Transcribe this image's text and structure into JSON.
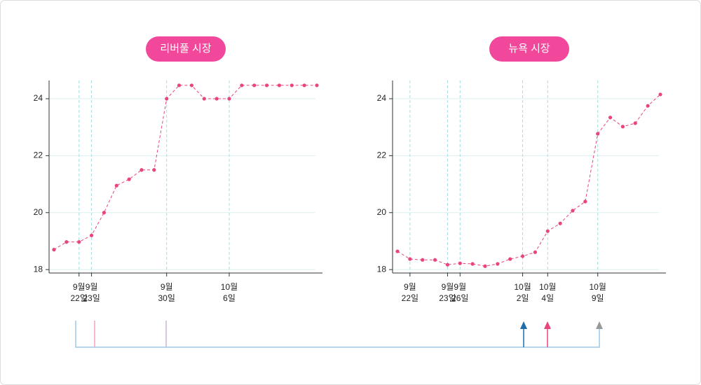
{
  "chart_data": [
    {
      "type": "line",
      "title": "리버풀 시장",
      "color": "#e8457f",
      "categories": [
        null,
        null,
        "9월\n22일",
        "9월\n23일",
        null,
        null,
        null,
        null,
        null,
        "9월\n30일",
        null,
        null,
        null,
        null,
        "10월\n6일",
        null,
        null,
        null,
        null,
        null,
        null,
        null
      ],
      "values": [
        18.7,
        18.97,
        18.97,
        19.2,
        20.0,
        20.95,
        21.17,
        21.5,
        21.5,
        24.0,
        24.47,
        24.47,
        24.0,
        24.0,
        24.0,
        24.47,
        24.47,
        24.47,
        24.47,
        24.47,
        24.47,
        24.47
      ],
      "ylim": [
        17.88,
        24.64
      ],
      "yticks": [
        18,
        20,
        22,
        24
      ],
      "grid": true
    },
    {
      "type": "line",
      "title": "뉴욕 시장",
      "color": "#e8457f",
      "categories": [
        null,
        "9월\n22일",
        null,
        null,
        "9월\n23일",
        "9월\n26일",
        null,
        null,
        null,
        null,
        "10월\n2일",
        null,
        "10월\n4일",
        null,
        null,
        null,
        "10월\n9일",
        null,
        null,
        null,
        null,
        null
      ],
      "values": [
        18.64,
        18.37,
        18.34,
        18.34,
        18.17,
        18.22,
        18.2,
        18.12,
        18.2,
        18.37,
        18.47,
        18.61,
        19.35,
        19.62,
        20.07,
        20.39,
        22.77,
        23.34,
        23.02,
        23.14,
        23.75,
        24.15
      ],
      "ylim": [
        17.88,
        24.64
      ],
      "yticks": [
        18,
        20,
        22,
        24
      ],
      "grid": true
    }
  ]
}
